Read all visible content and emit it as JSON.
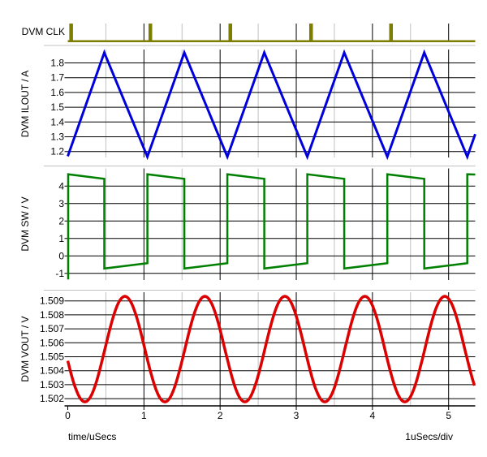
{
  "axis": {
    "x_tick_labels": [
      "0",
      "1",
      "2",
      "3",
      "4",
      "5"
    ],
    "x_tick_values": [
      0,
      1,
      2,
      3,
      4,
      5
    ],
    "x_minor_grid": [
      0.5,
      1.5,
      2.5,
      3.5,
      4.5
    ],
    "x_major_grid": [
      1,
      2,
      3,
      4,
      5
    ],
    "caption_left": "time/uSecs",
    "caption_right": "1uSecs/div",
    "t_end": 5.35
  },
  "colors": {
    "clk": "#7d7d00",
    "ilout": "#0000dd",
    "sw": "#008000",
    "vout": "#dd0000",
    "grid_major": "#000000",
    "grid_minor": "#c0c0c0",
    "separator": "#c0c0c0",
    "background": "#ffffff"
  },
  "chart_data": [
    {
      "id": "clk",
      "type": "line",
      "signal": "DVM CLK",
      "color_key": "clk",
      "waveform": "pulse-train",
      "description": "Digital clock: baseline low with narrow high pulses",
      "pulse_start_times_us": [
        0.02,
        1.06,
        2.11,
        3.17,
        4.22
      ],
      "pulse_width_us": 0.048
    },
    {
      "id": "ilout",
      "type": "line",
      "signal": "DVM ILOUT / A",
      "color_key": "ilout",
      "waveform": "triangle",
      "y_tick_labels": [
        "1.8",
        "1.7",
        "1.6",
        "1.5",
        "1.4",
        "1.3",
        "1.2"
      ],
      "y_tick_values": [
        1.8,
        1.7,
        1.6,
        1.5,
        1.4,
        1.3,
        1.2
      ],
      "ylim": [
        1.16,
        1.89
      ],
      "period_us": 1.05,
      "points": [
        [
          0,
          1.168
        ],
        [
          0.48,
          1.87
        ],
        [
          1.045,
          1.165
        ],
        [
          1.53,
          1.87
        ],
        [
          2.095,
          1.165
        ],
        [
          2.58,
          1.87
        ],
        [
          3.145,
          1.165
        ],
        [
          3.63,
          1.87
        ],
        [
          4.195,
          1.165
        ],
        [
          4.68,
          1.87
        ],
        [
          5.245,
          1.165
        ],
        [
          5.35,
          1.318
        ]
      ]
    },
    {
      "id": "sw",
      "type": "line",
      "signal": "DVM SW / V",
      "color_key": "sw",
      "waveform": "square",
      "y_tick_labels": [
        "4",
        "3",
        "2",
        "1",
        "0",
        "-1"
      ],
      "y_tick_values": [
        4,
        3,
        2,
        1,
        0,
        -1
      ],
      "ylim": [
        -1.35,
        5.0
      ],
      "period_us": 1.05,
      "points": [
        [
          0.005,
          -1.35
        ],
        [
          0.005,
          4.68
        ],
        [
          0.48,
          4.42
        ],
        [
          0.48,
          -0.72
        ],
        [
          1.045,
          -0.42
        ],
        [
          1.045,
          4.68
        ],
        [
          1.53,
          4.42
        ],
        [
          1.53,
          -0.72
        ],
        [
          2.095,
          -0.42
        ],
        [
          2.095,
          4.68
        ],
        [
          2.58,
          4.42
        ],
        [
          2.58,
          -0.72
        ],
        [
          3.145,
          -0.42
        ],
        [
          3.145,
          4.68
        ],
        [
          3.63,
          4.42
        ],
        [
          3.63,
          -0.72
        ],
        [
          4.195,
          -0.42
        ],
        [
          4.195,
          4.68
        ],
        [
          4.68,
          4.42
        ],
        [
          4.68,
          -0.72
        ],
        [
          5.245,
          -0.42
        ],
        [
          5.245,
          4.68
        ],
        [
          5.35,
          4.665
        ]
      ]
    },
    {
      "id": "vout",
      "type": "line",
      "signal": "DVM VOUT / V",
      "color_key": "vout",
      "waveform": "sine",
      "y_tick_labels": [
        "1.509",
        "1.508",
        "1.507",
        "1.506",
        "1.505",
        "1.504",
        "1.503",
        "1.502"
      ],
      "y_tick_values": [
        1.509,
        1.508,
        1.507,
        1.506,
        1.505,
        1.504,
        1.503,
        1.502
      ],
      "ylim": [
        1.5015,
        1.5096
      ],
      "sine": {
        "mid": 1.50555,
        "amplitude": 0.00378,
        "period_us": 1.05,
        "t_first_max_us": 0.75
      },
      "observed_extrema": {
        "min": 1.5017,
        "max": 1.5093
      }
    }
  ]
}
